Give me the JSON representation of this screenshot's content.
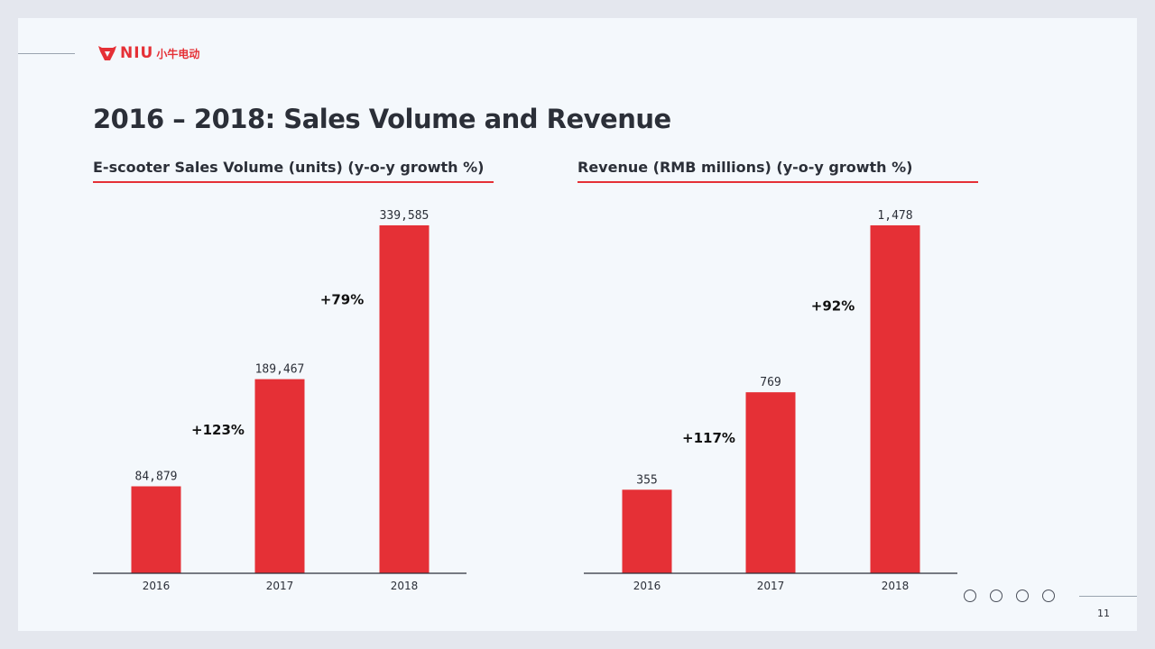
{
  "header": {
    "logo_text": "NIU",
    "logo_cn": "小牛电动",
    "title": "2016 – 2018: Sales Volume and Revenue"
  },
  "colors": {
    "bar": "#e53036",
    "axis": "#2b2f38",
    "text": "#2b2f38"
  },
  "chart_data": [
    {
      "type": "bar",
      "title": "E-scooter Sales Volume (units) (y-o-y growth %)",
      "categories": [
        "2016",
        "2017",
        "2018"
      ],
      "values": [
        84879,
        189467,
        339585
      ],
      "value_labels": [
        "84,879",
        "189,467",
        "339,585"
      ],
      "growth_labels": [
        "+123%",
        "+79%"
      ],
      "ylim": [
        0,
        339585
      ]
    },
    {
      "type": "bar",
      "title": "Revenue (RMB millions) (y-o-y growth %)",
      "categories": [
        "2016",
        "2017",
        "2018"
      ],
      "values": [
        355,
        769,
        1478
      ],
      "value_labels": [
        "355",
        "769",
        "1,478"
      ],
      "growth_labels": [
        "+117%",
        "+92%"
      ],
      "ylim": [
        0,
        1478
      ]
    }
  ],
  "footer": {
    "nav_icons": [
      "circle-icon",
      "circle-icon",
      "circle-icon",
      "circle-icon"
    ],
    "page_number": "11"
  }
}
